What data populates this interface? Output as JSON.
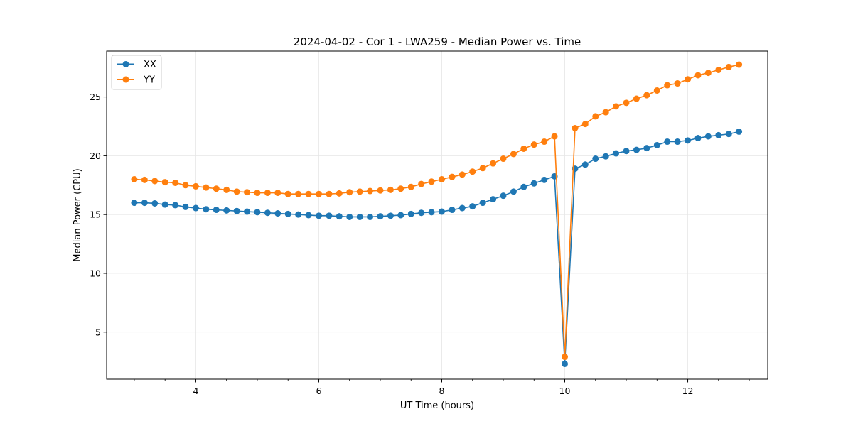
{
  "chart_data": {
    "type": "line",
    "title": "2024-04-02 - Cor 1 - LWA259 - Median Power vs. Time",
    "xlabel": "UT Time (hours)",
    "ylabel": "Median Power (CPU)",
    "xlim": [
      2.55,
      13.3
    ],
    "ylim": [
      1.0,
      28.9
    ],
    "xticks": [
      4,
      6,
      8,
      10,
      12
    ],
    "yticks": [
      5,
      10,
      15,
      20,
      25
    ],
    "grid": true,
    "legend_position": "top-left",
    "x": [
      3.0,
      3.167,
      3.333,
      3.5,
      3.667,
      3.833,
      4.0,
      4.167,
      4.333,
      4.5,
      4.667,
      4.833,
      5.0,
      5.167,
      5.333,
      5.5,
      5.667,
      5.833,
      6.0,
      6.167,
      6.333,
      6.5,
      6.667,
      6.833,
      7.0,
      7.167,
      7.333,
      7.5,
      7.667,
      7.833,
      8.0,
      8.167,
      8.333,
      8.5,
      8.667,
      8.833,
      9.0,
      9.167,
      9.333,
      9.5,
      9.667,
      9.833,
      10.0,
      10.167,
      10.333,
      10.5,
      10.667,
      10.833,
      11.0,
      11.167,
      11.333,
      11.5,
      11.667,
      11.833,
      12.0,
      12.167,
      12.333,
      12.5,
      12.667,
      12.833
    ],
    "series": [
      {
        "name": "XX",
        "color": "#1f77b4",
        "values": [
          16.0,
          16.0,
          15.95,
          15.85,
          15.8,
          15.65,
          15.55,
          15.45,
          15.4,
          15.35,
          15.3,
          15.25,
          15.2,
          15.15,
          15.1,
          15.05,
          15.0,
          14.95,
          14.9,
          14.9,
          14.85,
          14.8,
          14.8,
          14.8,
          14.85,
          14.9,
          14.95,
          15.05,
          15.15,
          15.2,
          15.25,
          15.4,
          15.55,
          15.7,
          16.0,
          16.3,
          16.6,
          16.95,
          17.35,
          17.65,
          17.95,
          18.25,
          2.3,
          18.9,
          19.25,
          19.75,
          19.95,
          20.2,
          20.4,
          20.5,
          20.65,
          20.9,
          21.2,
          21.2,
          21.3,
          21.5,
          21.65,
          21.75,
          21.85,
          22.05
        ]
      },
      {
        "name": "YY",
        "color": "#ff7f0e",
        "values": [
          18.0,
          17.95,
          17.85,
          17.75,
          17.7,
          17.5,
          17.4,
          17.3,
          17.2,
          17.1,
          16.95,
          16.9,
          16.85,
          16.85,
          16.85,
          16.75,
          16.75,
          16.75,
          16.75,
          16.75,
          16.8,
          16.9,
          16.95,
          17.0,
          17.05,
          17.1,
          17.2,
          17.35,
          17.6,
          17.8,
          18.0,
          18.2,
          18.4,
          18.65,
          18.95,
          19.35,
          19.75,
          20.15,
          20.6,
          20.95,
          21.2,
          21.65,
          2.9,
          22.35,
          22.7,
          23.35,
          23.7,
          24.2,
          24.5,
          24.85,
          25.15,
          25.55,
          26.0,
          26.15,
          26.5,
          26.85,
          27.05,
          27.3,
          27.55,
          27.75
        ]
      }
    ]
  }
}
